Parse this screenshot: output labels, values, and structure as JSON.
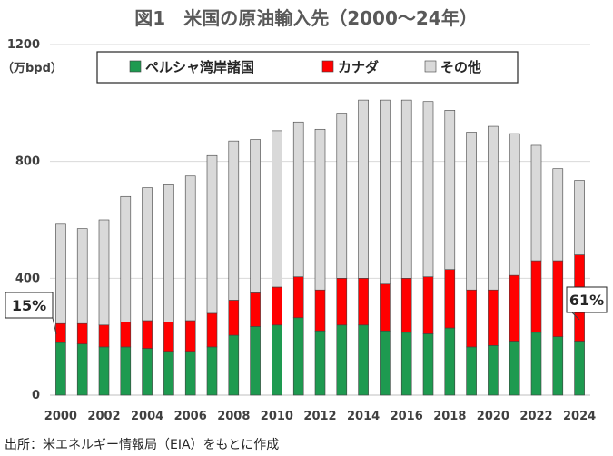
{
  "chart_data": {
    "type": "bar",
    "stacked": true,
    "title": "図1　米国の原油輸入先（2000〜24年）",
    "ylabel": "（万bpd）",
    "ylim": [
      0,
      1200
    ],
    "yticks": [
      0,
      400,
      800,
      1200
    ],
    "categories": [
      "2000",
      "2001",
      "2002",
      "2003",
      "2004",
      "2005",
      "2006",
      "2007",
      "2008",
      "2009",
      "2010",
      "2011",
      "2012",
      "2013",
      "2014",
      "2015",
      "2016",
      "2017",
      "2018",
      "2019",
      "2020",
      "2021",
      "2022",
      "2023",
      "2024"
    ],
    "xtick_labels": [
      "2000",
      "",
      "2002",
      "",
      "2004",
      "",
      "2006",
      "",
      "2008",
      "",
      "2010",
      "",
      "2012",
      "",
      "2014",
      "",
      "2016",
      "",
      "2018",
      "",
      "2020",
      "",
      "2022",
      "",
      "2024"
    ],
    "series": [
      {
        "name": "ペルシャ湾岸諸国",
        "color": "#1e9a50",
        "values": [
          180,
          175,
          165,
          165,
          160,
          150,
          150,
          165,
          205,
          235,
          240,
          265,
          220,
          240,
          240,
          220,
          215,
          210,
          230,
          165,
          170,
          185,
          215,
          200,
          185
        ]
      },
      {
        "name": "カナダ",
        "color": "#ff0000",
        "values": [
          65,
          70,
          75,
          85,
          95,
          100,
          105,
          115,
          120,
          115,
          130,
          140,
          140,
          160,
          160,
          160,
          185,
          195,
          200,
          195,
          190,
          225,
          245,
          260,
          295
        ]
      },
      {
        "name": "その他",
        "color": "#d9d9d9",
        "values": [
          340,
          325,
          360,
          430,
          455,
          470,
          495,
          540,
          545,
          525,
          535,
          530,
          550,
          565,
          610,
          630,
          610,
          600,
          545,
          540,
          560,
          485,
          395,
          315,
          255
        ]
      }
    ],
    "annotations": [
      {
        "text": "15%",
        "year": "2000"
      },
      {
        "text": "61%",
        "year": "2024"
      }
    ],
    "source": "出所：米エネルギー情報局（EIA）をもとに作成",
    "grid": true,
    "legend_position": "top"
  }
}
